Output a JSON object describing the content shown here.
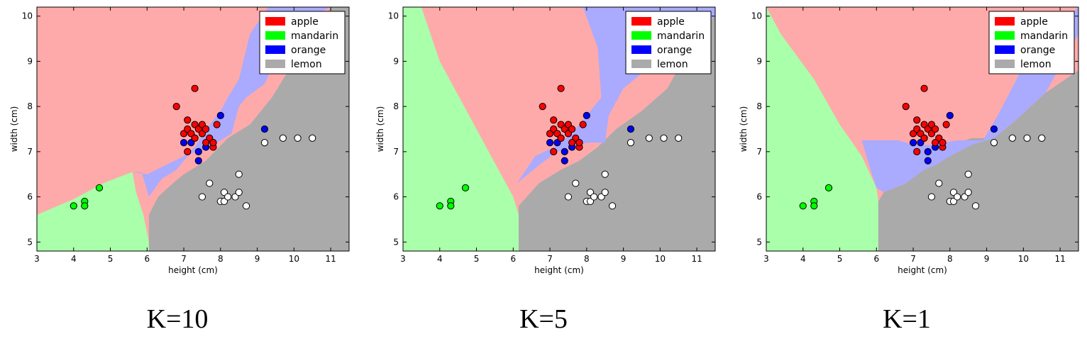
{
  "colors": {
    "apple": "#ff0000",
    "mandarin": "#00ff00",
    "orange": "#0000ff",
    "lemon": "#ffffff",
    "region_apple": "#ffaaaa",
    "region_mandarin": "#aaffaa",
    "region_orange": "#aaaaff",
    "region_lemon": "#aaaaaa"
  },
  "legend": {
    "placement": "top-right",
    "items": [
      {
        "key": "apple",
        "label": "apple"
      },
      {
        "key": "mandarin",
        "label": "mandarin"
      },
      {
        "key": "orange",
        "label": "orange"
      },
      {
        "key": "lemon",
        "label": "lemon"
      }
    ]
  },
  "chart_data": [
    {
      "type": "scatter",
      "caption": "K=10",
      "xlabel": "height (cm)",
      "ylabel": "width (cm)",
      "xlim": [
        3,
        11.5
      ],
      "ylim": [
        4.8,
        10.2
      ],
      "xticks": [
        3,
        4,
        5,
        6,
        7,
        8,
        9,
        10,
        11
      ],
      "yticks": [
        5,
        6,
        7,
        8,
        9,
        10
      ],
      "grid": false,
      "points": {
        "apple": [
          [
            6.8,
            8.0
          ],
          [
            7.3,
            8.4
          ],
          [
            7.0,
            7.4
          ],
          [
            7.1,
            7.7
          ],
          [
            7.1,
            7.5
          ],
          [
            7.2,
            7.4
          ],
          [
            7.3,
            7.6
          ],
          [
            7.3,
            7.3
          ],
          [
            7.4,
            7.5
          ],
          [
            7.5,
            7.6
          ],
          [
            7.5,
            7.4
          ],
          [
            7.6,
            7.5
          ],
          [
            7.7,
            7.3
          ],
          [
            7.8,
            7.1
          ],
          [
            7.9,
            7.6
          ],
          [
            7.1,
            7.0
          ],
          [
            7.6,
            7.2
          ],
          [
            7.8,
            7.2
          ]
        ],
        "mandarin": [
          [
            4.0,
            5.8
          ],
          [
            4.3,
            5.9
          ],
          [
            4.3,
            5.8
          ],
          [
            4.7,
            6.2
          ]
        ],
        "orange": [
          [
            7.0,
            7.2
          ],
          [
            7.2,
            7.2
          ],
          [
            7.3,
            7.3
          ],
          [
            7.4,
            7.0
          ],
          [
            7.4,
            6.8
          ],
          [
            7.6,
            7.1
          ],
          [
            7.8,
            7.2
          ],
          [
            8.0,
            7.8
          ],
          [
            9.2,
            7.5
          ]
        ],
        "lemon": [
          [
            7.5,
            6.0
          ],
          [
            7.7,
            6.3
          ],
          [
            8.0,
            5.9
          ],
          [
            8.1,
            6.1
          ],
          [
            8.1,
            5.9
          ],
          [
            8.2,
            6.0
          ],
          [
            8.4,
            6.0
          ],
          [
            8.5,
            6.1
          ],
          [
            8.5,
            6.5
          ],
          [
            8.7,
            5.8
          ],
          [
            9.2,
            7.2
          ],
          [
            9.7,
            7.3
          ],
          [
            10.1,
            7.3
          ],
          [
            10.5,
            7.3
          ]
        ]
      },
      "regions": {
        "lemon": [
          [
            6.05,
            4.8
          ],
          [
            6.05,
            5.6
          ],
          [
            6.3,
            6.0
          ],
          [
            6.7,
            6.3
          ],
          [
            7.0,
            6.5
          ],
          [
            7.6,
            6.8
          ],
          [
            8.2,
            7.3
          ],
          [
            8.8,
            7.6
          ],
          [
            9.4,
            8.2
          ],
          [
            10.0,
            9.0
          ],
          [
            10.6,
            9.6
          ],
          [
            11.0,
            10.2
          ],
          [
            11.5,
            10.2
          ],
          [
            11.5,
            4.8
          ]
        ],
        "mandarin": [
          [
            3,
            4.8
          ],
          [
            3,
            5.6
          ],
          [
            4.0,
            5.95
          ],
          [
            4.8,
            6.3
          ],
          [
            5.6,
            6.55
          ],
          [
            5.7,
            6.1
          ],
          [
            5.9,
            5.6
          ],
          [
            6.05,
            5.0
          ],
          [
            6.05,
            4.8
          ]
        ],
        "orange": [
          [
            5.6,
            6.55
          ],
          [
            5.85,
            6.55
          ],
          [
            6.05,
            6.0
          ],
          [
            6.4,
            6.4
          ],
          [
            6.8,
            6.6
          ],
          [
            7.1,
            6.9
          ],
          [
            7.3,
            7.0
          ],
          [
            7.6,
            7.05
          ],
          [
            7.9,
            7.2
          ],
          [
            8.3,
            7.4
          ],
          [
            8.5,
            8.0
          ],
          [
            8.7,
            8.2
          ],
          [
            9.2,
            8.5
          ],
          [
            9.6,
            9.2
          ],
          [
            10.0,
            9.5
          ],
          [
            10.5,
            10.0
          ],
          [
            11.0,
            10.2
          ],
          [
            9.3,
            10.2
          ],
          [
            8.8,
            9.6
          ],
          [
            8.5,
            8.6
          ],
          [
            8.2,
            8.2
          ],
          [
            8.0,
            7.9
          ],
          [
            7.7,
            7.6
          ],
          [
            7.3,
            7.1
          ],
          [
            7.0,
            6.9
          ],
          [
            6.5,
            6.7
          ],
          [
            6.0,
            6.5
          ]
        ]
      }
    },
    {
      "type": "scatter",
      "caption": "K=5",
      "xlabel": "height (cm)",
      "ylabel": "width (cm)",
      "xlim": [
        3,
        11.5
      ],
      "ylim": [
        4.8,
        10.2
      ],
      "xticks": [
        3,
        4,
        5,
        6,
        7,
        8,
        9,
        10,
        11
      ],
      "yticks": [
        5,
        6,
        7,
        8,
        9,
        10
      ],
      "grid": false,
      "points": {
        "apple": [
          [
            6.8,
            8.0
          ],
          [
            7.3,
            8.4
          ],
          [
            7.0,
            7.4
          ],
          [
            7.1,
            7.7
          ],
          [
            7.1,
            7.5
          ],
          [
            7.2,
            7.4
          ],
          [
            7.3,
            7.6
          ],
          [
            7.3,
            7.3
          ],
          [
            7.4,
            7.5
          ],
          [
            7.5,
            7.6
          ],
          [
            7.5,
            7.4
          ],
          [
            7.6,
            7.5
          ],
          [
            7.7,
            7.3
          ],
          [
            7.8,
            7.1
          ],
          [
            7.9,
            7.6
          ],
          [
            7.1,
            7.0
          ],
          [
            7.6,
            7.2
          ],
          [
            7.8,
            7.2
          ]
        ],
        "mandarin": [
          [
            4.0,
            5.8
          ],
          [
            4.3,
            5.9
          ],
          [
            4.3,
            5.8
          ],
          [
            4.7,
            6.2
          ]
        ],
        "orange": [
          [
            7.0,
            7.2
          ],
          [
            7.2,
            7.2
          ],
          [
            7.3,
            7.3
          ],
          [
            7.4,
            7.0
          ],
          [
            7.4,
            6.8
          ],
          [
            7.6,
            7.1
          ],
          [
            7.8,
            7.2
          ],
          [
            8.0,
            7.8
          ],
          [
            9.2,
            7.5
          ]
        ],
        "lemon": [
          [
            7.5,
            6.0
          ],
          [
            7.7,
            6.3
          ],
          [
            8.0,
            5.9
          ],
          [
            8.1,
            6.1
          ],
          [
            8.1,
            5.9
          ],
          [
            8.2,
            6.0
          ],
          [
            8.4,
            6.0
          ],
          [
            8.5,
            6.1
          ],
          [
            8.5,
            6.5
          ],
          [
            8.7,
            5.8
          ],
          [
            9.2,
            7.2
          ],
          [
            9.7,
            7.3
          ],
          [
            10.1,
            7.3
          ],
          [
            10.5,
            7.3
          ]
        ]
      },
      "regions": {
        "lemon": [
          [
            6.15,
            4.8
          ],
          [
            6.15,
            5.8
          ],
          [
            6.7,
            6.3
          ],
          [
            7.3,
            6.6
          ],
          [
            7.8,
            6.8
          ],
          [
            8.3,
            7.1
          ],
          [
            8.8,
            7.5
          ],
          [
            9.5,
            7.9
          ],
          [
            10.2,
            8.4
          ],
          [
            10.6,
            9.0
          ],
          [
            11.0,
            9.6
          ],
          [
            11.5,
            10.0
          ],
          [
            11.5,
            4.8
          ]
        ],
        "mandarin": [
          [
            3,
            4.8
          ],
          [
            3,
            10.2
          ],
          [
            3.5,
            10.2
          ],
          [
            4.0,
            9.0
          ],
          [
            4.8,
            7.8
          ],
          [
            5.6,
            6.6
          ],
          [
            6.0,
            6.0
          ],
          [
            6.15,
            5.6
          ],
          [
            6.15,
            4.8
          ]
        ],
        "orange": [
          [
            6.1,
            6.3
          ],
          [
            6.7,
            6.7
          ],
          [
            7.2,
            7.0
          ],
          [
            7.6,
            7.1
          ],
          [
            8.0,
            7.2
          ],
          [
            8.5,
            7.2
          ],
          [
            8.6,
            7.8
          ],
          [
            9.0,
            8.4
          ],
          [
            9.6,
            8.8
          ],
          [
            10.4,
            9.2
          ],
          [
            11.5,
            10.0
          ],
          [
            11.5,
            10.2
          ],
          [
            7.9,
            10.2
          ],
          [
            8.3,
            9.3
          ],
          [
            8.4,
            8.2
          ],
          [
            8.0,
            7.8
          ],
          [
            7.6,
            7.4
          ],
          [
            7.1,
            7.1
          ],
          [
            6.6,
            6.9
          ]
        ]
      }
    },
    {
      "type": "scatter",
      "caption": "K=1",
      "xlabel": "height (cm)",
      "ylabel": "width (cm)",
      "xlim": [
        3,
        11.5
      ],
      "ylim": [
        4.8,
        10.2
      ],
      "xticks": [
        3,
        4,
        5,
        6,
        7,
        8,
        9,
        10,
        11
      ],
      "yticks": [
        5,
        6,
        7,
        8,
        9,
        10
      ],
      "grid": false,
      "points": {
        "apple": [
          [
            6.8,
            8.0
          ],
          [
            7.3,
            8.4
          ],
          [
            7.0,
            7.4
          ],
          [
            7.1,
            7.7
          ],
          [
            7.1,
            7.5
          ],
          [
            7.2,
            7.4
          ],
          [
            7.3,
            7.6
          ],
          [
            7.3,
            7.3
          ],
          [
            7.4,
            7.5
          ],
          [
            7.5,
            7.6
          ],
          [
            7.5,
            7.4
          ],
          [
            7.6,
            7.5
          ],
          [
            7.7,
            7.3
          ],
          [
            7.8,
            7.1
          ],
          [
            7.9,
            7.6
          ],
          [
            7.1,
            7.0
          ],
          [
            7.6,
            7.2
          ],
          [
            7.8,
            7.2
          ]
        ],
        "mandarin": [
          [
            4.0,
            5.8
          ],
          [
            4.3,
            5.9
          ],
          [
            4.3,
            5.8
          ],
          [
            4.7,
            6.2
          ]
        ],
        "orange": [
          [
            7.0,
            7.2
          ],
          [
            7.2,
            7.2
          ],
          [
            7.3,
            7.3
          ],
          [
            7.4,
            7.0
          ],
          [
            7.4,
            6.8
          ],
          [
            7.6,
            7.1
          ],
          [
            7.8,
            7.2
          ],
          [
            8.0,
            7.8
          ],
          [
            9.2,
            7.5
          ]
        ],
        "lemon": [
          [
            7.5,
            6.0
          ],
          [
            7.7,
            6.3
          ],
          [
            8.0,
            5.9
          ],
          [
            8.1,
            6.1
          ],
          [
            8.1,
            5.9
          ],
          [
            8.2,
            6.0
          ],
          [
            8.4,
            6.0
          ],
          [
            8.5,
            6.1
          ],
          [
            8.5,
            6.5
          ],
          [
            8.7,
            5.8
          ],
          [
            9.2,
            7.2
          ],
          [
            9.7,
            7.3
          ],
          [
            10.1,
            7.3
          ],
          [
            10.5,
            7.3
          ]
        ]
      },
      "regions": {
        "lemon": [
          [
            6.05,
            4.8
          ],
          [
            6.05,
            5.9
          ],
          [
            6.2,
            6.1
          ],
          [
            6.8,
            6.3
          ],
          [
            7.3,
            6.8
          ],
          [
            7.7,
            7.0
          ],
          [
            8.2,
            7.2
          ],
          [
            8.6,
            7.3
          ],
          [
            9.2,
            7.3
          ],
          [
            9.8,
            7.7
          ],
          [
            10.6,
            8.3
          ],
          [
            11.5,
            8.8
          ],
          [
            11.5,
            4.8
          ]
        ],
        "mandarin": [
          [
            3,
            4.8
          ],
          [
            3,
            10.2
          ],
          [
            3.4,
            9.6
          ],
          [
            4.3,
            8.6
          ],
          [
            5.0,
            7.6
          ],
          [
            5.6,
            6.9
          ],
          [
            6.0,
            6.2
          ],
          [
            6.05,
            5.9
          ],
          [
            6.05,
            4.8
          ]
        ],
        "orange": [
          [
            5.6,
            7.25
          ],
          [
            6.6,
            7.25
          ],
          [
            7.0,
            7.15
          ],
          [
            7.5,
            7.15
          ],
          [
            8.2,
            7.25
          ],
          [
            8.9,
            7.25
          ],
          [
            9.3,
            7.8
          ],
          [
            10.2,
            9.2
          ],
          [
            11.5,
            10.2
          ],
          [
            11.5,
            9.6
          ],
          [
            10.6,
            8.3
          ],
          [
            9.8,
            7.7
          ],
          [
            9.2,
            7.3
          ],
          [
            8.6,
            7.15
          ],
          [
            8.0,
            6.9
          ],
          [
            7.6,
            6.7
          ],
          [
            7.3,
            6.6
          ],
          [
            6.8,
            6.3
          ],
          [
            6.2,
            6.1
          ],
          [
            6.0,
            6.2
          ],
          [
            5.8,
            6.7
          ]
        ]
      }
    }
  ]
}
